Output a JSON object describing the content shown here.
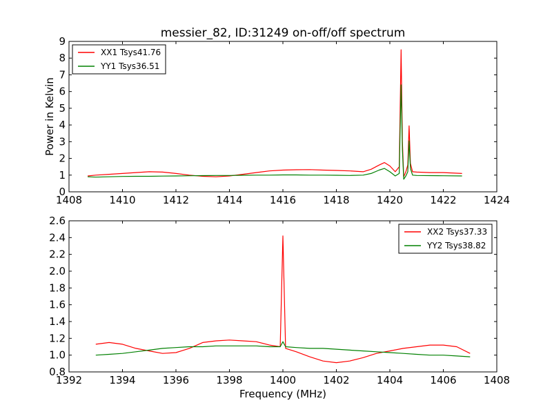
{
  "figure": {
    "background": "#ffffff"
  },
  "chart_data": [
    {
      "type": "line",
      "title": "messier_82, ID:31249 on-off/off spectrum",
      "xlabel": "",
      "ylabel": "Power in Kelvin",
      "xlim": [
        1408,
        1424
      ],
      "ylim": [
        0,
        9
      ],
      "xticks": [
        1408,
        1410,
        1412,
        1414,
        1416,
        1418,
        1420,
        1422,
        1424
      ],
      "yticks": [
        0,
        1,
        2,
        3,
        4,
        5,
        6,
        7,
        8,
        9
      ],
      "ytick_labels": [
        "0",
        "1",
        "2",
        "3",
        "4",
        "5",
        "6",
        "7",
        "8",
        "9"
      ],
      "grid": false,
      "legend_position": "top-left",
      "series": [
        {
          "name": "XX1 Tsys41.76",
          "color": "#ff0000",
          "x": [
            1408.7,
            1409.0,
            1409.5,
            1410.0,
            1410.5,
            1411.0,
            1411.5,
            1412.0,
            1412.5,
            1413.0,
            1413.5,
            1414.0,
            1414.5,
            1415.0,
            1415.5,
            1416.0,
            1416.5,
            1417.0,
            1417.5,
            1418.0,
            1418.5,
            1419.0,
            1419.3,
            1419.6,
            1419.8,
            1420.0,
            1420.2,
            1420.35,
            1420.42,
            1420.47,
            1420.52,
            1420.6,
            1420.67,
            1420.72,
            1420.77,
            1420.85,
            1421.0,
            1421.5,
            1422.0,
            1422.7
          ],
          "y": [
            0.95,
            1.0,
            1.05,
            1.1,
            1.15,
            1.2,
            1.18,
            1.1,
            1.0,
            0.93,
            0.9,
            0.95,
            1.05,
            1.15,
            1.25,
            1.3,
            1.32,
            1.33,
            1.3,
            1.28,
            1.25,
            1.2,
            1.35,
            1.6,
            1.75,
            1.55,
            1.2,
            1.5,
            8.5,
            3.0,
            0.9,
            1.2,
            1.6,
            3.95,
            1.7,
            1.2,
            1.18,
            1.15,
            1.15,
            1.1
          ]
        },
        {
          "name": "YY1 Tsys36.51",
          "color": "#008000",
          "x": [
            1408.7,
            1409.0,
            1409.5,
            1410.0,
            1410.5,
            1411.0,
            1411.5,
            1412.0,
            1412.5,
            1413.0,
            1413.5,
            1414.0,
            1414.5,
            1415.0,
            1415.5,
            1416.0,
            1416.5,
            1417.0,
            1417.5,
            1418.0,
            1418.5,
            1419.0,
            1419.3,
            1419.6,
            1419.8,
            1420.0,
            1420.2,
            1420.35,
            1420.42,
            1420.47,
            1420.52,
            1420.6,
            1420.67,
            1420.72,
            1420.77,
            1420.85,
            1421.0,
            1421.5,
            1422.0,
            1422.7
          ],
          "y": [
            0.9,
            0.88,
            0.9,
            0.92,
            0.93,
            0.93,
            0.94,
            0.95,
            0.96,
            0.97,
            0.98,
            0.98,
            0.99,
            1.0,
            1.0,
            1.01,
            1.01,
            1.0,
            1.0,
            0.99,
            0.98,
            1.0,
            1.1,
            1.3,
            1.4,
            1.2,
            0.95,
            1.1,
            6.4,
            2.5,
            0.75,
            0.95,
            1.2,
            3.05,
            1.4,
            1.0,
            0.98,
            0.97,
            0.96,
            0.95
          ]
        }
      ]
    },
    {
      "type": "line",
      "title": "",
      "xlabel": "Frequency (MHz)",
      "ylabel": "",
      "xlim": [
        1392,
        1408
      ],
      "ylim": [
        0.8,
        2.6
      ],
      "xticks": [
        1392,
        1394,
        1396,
        1398,
        1400,
        1402,
        1404,
        1406,
        1408
      ],
      "yticks": [
        0.8,
        1.0,
        1.2,
        1.4,
        1.6,
        1.8,
        2.0,
        2.2,
        2.4,
        2.6
      ],
      "ytick_labels": [
        "0.8",
        "1.0",
        "1.2",
        "1.4",
        "1.6",
        "1.8",
        "2.0",
        "2.2",
        "2.4",
        "2.6"
      ],
      "grid": false,
      "legend_position": "top-right",
      "series": [
        {
          "name": "XX2 Tsys37.33",
          "color": "#ff0000",
          "x": [
            1393.0,
            1393.5,
            1394.0,
            1394.5,
            1395.0,
            1395.5,
            1396.0,
            1396.5,
            1397.0,
            1397.5,
            1398.0,
            1398.5,
            1399.0,
            1399.5,
            1399.9,
            1400.0,
            1400.1,
            1400.5,
            1401.0,
            1401.5,
            1402.0,
            1402.5,
            1403.0,
            1403.5,
            1404.0,
            1404.5,
            1405.0,
            1405.5,
            1406.0,
            1406.5,
            1407.0
          ],
          "y": [
            1.13,
            1.15,
            1.13,
            1.08,
            1.05,
            1.02,
            1.03,
            1.08,
            1.15,
            1.17,
            1.18,
            1.17,
            1.16,
            1.12,
            1.1,
            2.42,
            1.08,
            1.04,
            0.98,
            0.93,
            0.91,
            0.93,
            0.97,
            1.02,
            1.05,
            1.08,
            1.1,
            1.12,
            1.12,
            1.1,
            1.02
          ]
        },
        {
          "name": "YY2 Tsys38.82",
          "color": "#008000",
          "x": [
            1393.0,
            1393.5,
            1394.0,
            1394.5,
            1395.0,
            1395.5,
            1396.0,
            1396.5,
            1397.0,
            1397.5,
            1398.0,
            1398.5,
            1399.0,
            1399.5,
            1399.9,
            1400.0,
            1400.1,
            1400.5,
            1401.0,
            1401.5,
            1402.0,
            1402.5,
            1403.0,
            1403.5,
            1404.0,
            1404.5,
            1405.0,
            1405.5,
            1406.0,
            1406.5,
            1407.0
          ],
          "y": [
            1.0,
            1.01,
            1.02,
            1.04,
            1.06,
            1.08,
            1.09,
            1.1,
            1.1,
            1.11,
            1.11,
            1.11,
            1.11,
            1.1,
            1.1,
            1.16,
            1.1,
            1.09,
            1.08,
            1.08,
            1.07,
            1.06,
            1.05,
            1.04,
            1.03,
            1.02,
            1.01,
            1.0,
            1.0,
            0.99,
            0.98
          ]
        }
      ]
    }
  ]
}
